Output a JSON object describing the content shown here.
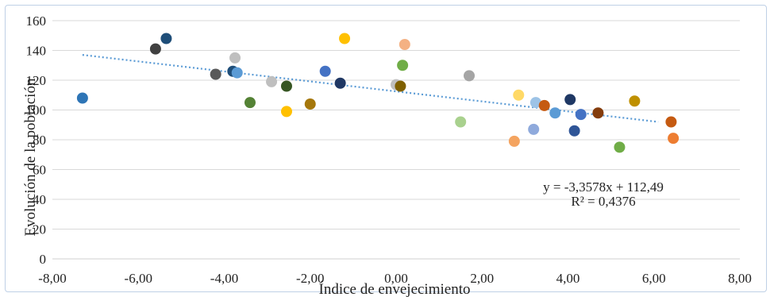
{
  "chart_data": {
    "type": "scatter",
    "xlabel": "Índice de envejecimiento",
    "ylabel": "Evolución de la población",
    "xlim": [
      -8,
      8
    ],
    "ylim": [
      0,
      160
    ],
    "x_ticks": [
      "-8,00",
      "-6,00",
      "-4,00",
      "-2,00",
      "0,00",
      "2,00",
      "4,00",
      "6,00",
      "8,00"
    ],
    "y_ticks": [
      "0",
      "20",
      "40",
      "60",
      "80",
      "100",
      "120",
      "140",
      "160"
    ],
    "grid": "horizontal",
    "trendline": {
      "slope": -3.3578,
      "intercept": 112.49,
      "x_range": [
        -7.3,
        6.1
      ],
      "style": "dotted",
      "color": "#5b9bd5",
      "equation": "y = -3,3578x + 112,49",
      "r2": "R² = 0,4376"
    },
    "points": [
      {
        "x": -7.3,
        "y": 108,
        "color": "#2e75b6"
      },
      {
        "x": -5.6,
        "y": 141,
        "color": "#404040"
      },
      {
        "x": -5.35,
        "y": 148,
        "color": "#1f4e79"
      },
      {
        "x": -4.2,
        "y": 124,
        "color": "#595959"
      },
      {
        "x": -3.8,
        "y": 126,
        "color": "#1f4e79"
      },
      {
        "x": -3.7,
        "y": 125,
        "color": "#5b9bd5"
      },
      {
        "x": -3.75,
        "y": 135,
        "color": "#bfbfbf"
      },
      {
        "x": -3.4,
        "y": 105,
        "color": "#548235"
      },
      {
        "x": -2.9,
        "y": 119,
        "color": "#bfbfbf"
      },
      {
        "x": -2.55,
        "y": 116,
        "color": "#375623"
      },
      {
        "x": -2.55,
        "y": 99,
        "color": "#ffc000"
      },
      {
        "x": -2.0,
        "y": 104,
        "color": "#a5770b"
      },
      {
        "x": -1.65,
        "y": 126,
        "color": "#4472c4"
      },
      {
        "x": -1.3,
        "y": 118,
        "color": "#203864"
      },
      {
        "x": -1.2,
        "y": 148,
        "color": "#ffc000"
      },
      {
        "x": 0.0,
        "y": 117,
        "color": "#bfbfbf"
      },
      {
        "x": 0.1,
        "y": 116,
        "color": "#7f6000"
      },
      {
        "x": 0.15,
        "y": 130,
        "color": "#70ad47"
      },
      {
        "x": 0.2,
        "y": 144,
        "color": "#f4b183"
      },
      {
        "x": 1.5,
        "y": 92,
        "color": "#a9d18e"
      },
      {
        "x": 1.7,
        "y": 123,
        "color": "#a5a5a5"
      },
      {
        "x": 2.75,
        "y": 79,
        "color": "#f4a460"
      },
      {
        "x": 2.85,
        "y": 110,
        "color": "#ffd966"
      },
      {
        "x": 3.2,
        "y": 87,
        "color": "#8faadc"
      },
      {
        "x": 3.25,
        "y": 105,
        "color": "#9dc3e6"
      },
      {
        "x": 3.45,
        "y": 103,
        "color": "#c55a11"
      },
      {
        "x": 3.7,
        "y": 98,
        "color": "#5b9bd5"
      },
      {
        "x": 4.05,
        "y": 107,
        "color": "#1f3864"
      },
      {
        "x": 4.15,
        "y": 86,
        "color": "#2f5597"
      },
      {
        "x": 4.3,
        "y": 97,
        "color": "#4472c4"
      },
      {
        "x": 4.7,
        "y": 98,
        "color": "#843c0c"
      },
      {
        "x": 5.2,
        "y": 75,
        "color": "#70ad47"
      },
      {
        "x": 5.55,
        "y": 106,
        "color": "#bf9000"
      },
      {
        "x": 6.4,
        "y": 92,
        "color": "#c55a11"
      },
      {
        "x": 6.45,
        "y": 81,
        "color": "#ed7d31"
      }
    ]
  }
}
